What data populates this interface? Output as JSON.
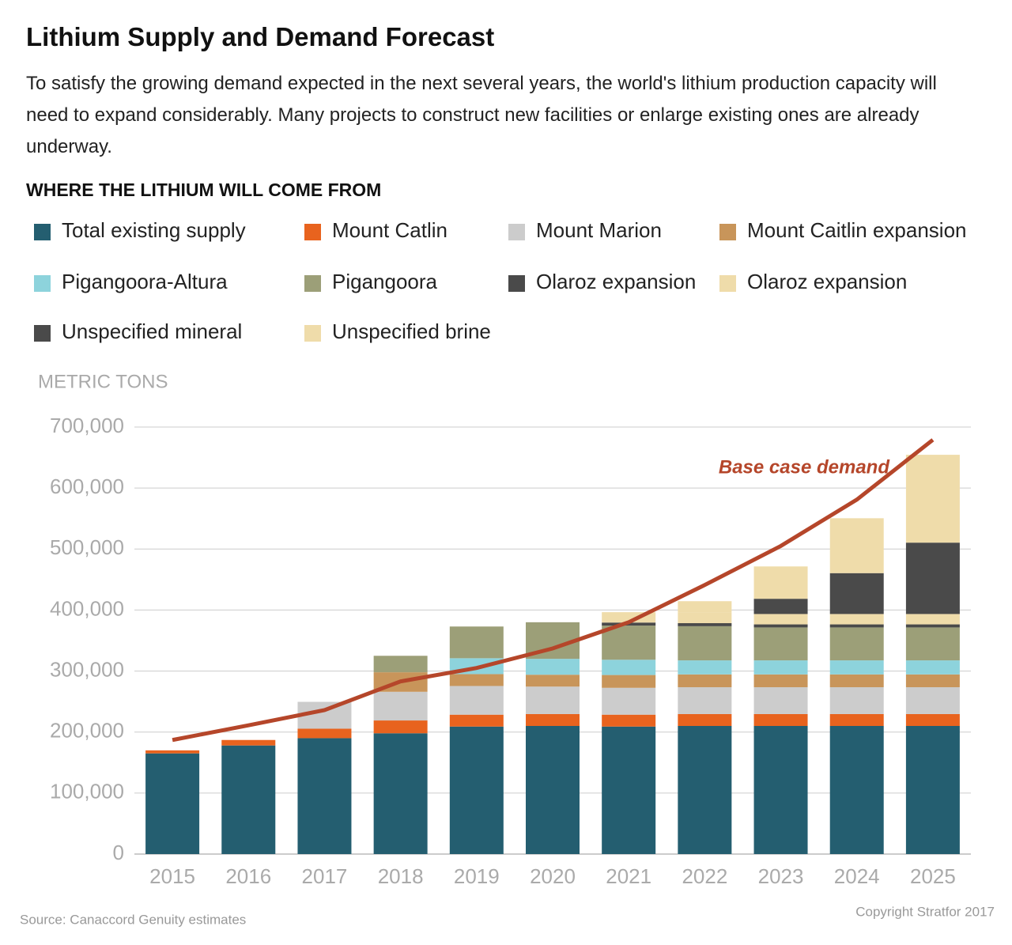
{
  "chart_data": {
    "type": "bar",
    "title": "Lithium Supply and Demand Forecast",
    "subtitle": "To satisfy the growing demand expected in the next several years, the world's lithium production capacity will need to expand considerably. Many projects to construct new facilities or enlarge existing ones are already underway.",
    "section_title": "WHERE THE LITHIUM WILL COME FROM",
    "y_label": "METRIC TONS",
    "source": "Source: Canaccord Genuity estimates",
    "copyright": "Copyright Stratfor 2017",
    "stacked": true,
    "categories": [
      "2015",
      "2016",
      "2017",
      "2018",
      "2019",
      "2020",
      "2021",
      "2022",
      "2023",
      "2024",
      "2025"
    ],
    "series": [
      {
        "name": "Total existing supply",
        "color": "#245e70",
        "values": [
          165000,
          178000,
          190000,
          198000,
          209000,
          210000,
          209000,
          210000,
          210000,
          210000,
          210000
        ]
      },
      {
        "name": "Mount Catlin",
        "color": "#e8631e",
        "values": [
          5000,
          9000,
          15500,
          21000,
          19500,
          19500,
          19500,
          19500,
          19500,
          19500,
          19500
        ]
      },
      {
        "name": "Mount Marion",
        "color": "#cccccc",
        "values": [
          0,
          0,
          44000,
          47000,
          47000,
          45000,
          44000,
          44000,
          44000,
          44000,
          44000
        ]
      },
      {
        "name": "Mount Caitlin expansion",
        "color": "#c8955a",
        "values": [
          0,
          0,
          0,
          32000,
          19500,
          19500,
          21000,
          21000,
          21000,
          21000,
          21000
        ]
      },
      {
        "name": "Pigangoora-Altura",
        "color": "#8dd3dc",
        "values": [
          0,
          0,
          0,
          0,
          26000,
          26000,
          25000,
          23000,
          23000,
          23000,
          23000
        ]
      },
      {
        "name": "Pigangoora",
        "color": "#9c9f78",
        "values": [
          0,
          0,
          0,
          27000,
          52000,
          60000,
          56000,
          56000,
          54000,
          54000,
          54000
        ]
      },
      {
        "name": "Olaroz expansion",
        "color": "#4a4a4a",
        "values": [
          0,
          0,
          0,
          0,
          0,
          0,
          5000,
          5000,
          5000,
          5000,
          5000
        ]
      },
      {
        "name": "Olaroz expansion",
        "color": "#efdcaa",
        "values": [
          0,
          0,
          0,
          0,
          0,
          0,
          17000,
          17000,
          17000,
          17000,
          17000
        ]
      },
      {
        "name": "Unspecified mineral",
        "color": "#4a4a4a",
        "values": [
          0,
          0,
          0,
          0,
          0,
          0,
          0,
          0,
          25000,
          67000,
          117000
        ]
      },
      {
        "name": "Unspecified brine",
        "color": "#efdcaa",
        "values": [
          0,
          0,
          0,
          0,
          0,
          0,
          0,
          19000,
          53000,
          90000,
          144000
        ]
      }
    ],
    "line": {
      "name": "Base case demand",
      "color": "#b5462a",
      "values": [
        187000,
        211000,
        236000,
        283000,
        305000,
        337000,
        380000,
        441000,
        505000,
        581000,
        679000
      ]
    },
    "ylim": [
      0,
      700000
    ],
    "yticks": [
      0,
      {
        "value": 100000,
        "label": "100,000"
      },
      {
        "value": 200000,
        "label": "200,000"
      },
      {
        "value": 300000,
        "label": "300,000"
      },
      {
        "value": 400000,
        "label": "400,000"
      },
      {
        "value": 500000,
        "label": "500,000"
      },
      {
        "value": 600000,
        "label": "600,000"
      },
      {
        "value": 700000,
        "label": "700,000"
      }
    ],
    "grid": true
  }
}
